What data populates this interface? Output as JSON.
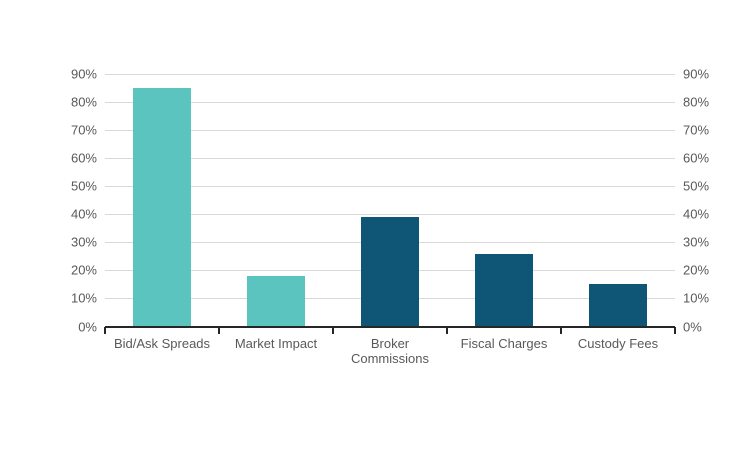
{
  "chart_data": {
    "type": "bar",
    "categories": [
      "Bid/Ask Spreads",
      "Market Impact",
      "Broker Commissions",
      "Fiscal Charges",
      "Custody Fees"
    ],
    "values": [
      85,
      18,
      39,
      26,
      15
    ],
    "value_unit": "%",
    "bar_colors": [
      "#5BC4BE",
      "#5BC4BE",
      "#0E5576",
      "#0E5576",
      "#0E5576"
    ],
    "title": "",
    "xlabel": "",
    "ylabel": "",
    "ylim": [
      0,
      90
    ],
    "y_tick_step": 10,
    "y_tick_labels": [
      "0%",
      "10%",
      "20%",
      "30%",
      "40%",
      "50%",
      "60%",
      "70%",
      "80%",
      "90%"
    ],
    "grid": true,
    "dual_y_axis": true,
    "legend_position": "none"
  },
  "colors": {
    "teal": "#5BC4BE",
    "dark_blue": "#0E5576",
    "gridline": "#D9D9D9",
    "axis_line": "#262626",
    "tick_label_text": "#595959",
    "background": "#FFFFFF"
  }
}
